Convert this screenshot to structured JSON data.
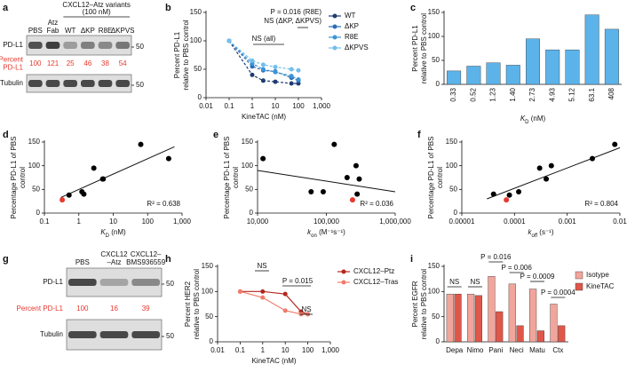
{
  "blots": [
    {
      "panel": "a",
      "header": [
        "CXCL12–Atz variants",
        "(100 nM)"
      ],
      "lanes": [
        [
          "PBS"
        ],
        [
          "Atz",
          "Fab"
        ],
        [
          "WT"
        ],
        [
          "ΔKP"
        ],
        [
          "R8E"
        ],
        [
          "ΔKPVS"
        ]
      ],
      "rows": [
        "PD-L1",
        "Tubulin"
      ],
      "percent_label": [
        "Percent",
        "PD-L1"
      ],
      "percent": [
        100,
        121,
        25,
        46,
        38,
        54
      ],
      "markers": [
        50,
        50
      ]
    },
    {
      "panel": "g",
      "lanes": [
        [
          "PBS"
        ],
        [
          "CXCL12",
          "–Atz"
        ],
        [
          "CXCL12–",
          "BMS936559"
        ]
      ],
      "rows": [
        "PD-L1",
        "Tubulin"
      ],
      "percent_label": [
        "Percent PD-L1"
      ],
      "percent": [
        100,
        16,
        39
      ],
      "markers": [
        50,
        50
      ]
    }
  ],
  "chart_data": [
    {
      "panel": "b",
      "type": "line",
      "xlabel": "KineTAC (nM)",
      "ylabel": [
        "Percent PD-L1",
        "relative to PBS control"
      ],
      "xlog": true,
      "xlim": [
        0.01,
        1000
      ],
      "xticks": [
        0.01,
        0.1,
        1,
        10,
        100,
        {
          "value": 1000,
          "label": "1,000"
        }
      ],
      "ylim": [
        0,
        150
      ],
      "yticks": [
        0,
        50,
        100,
        150
      ],
      "dashed": true,
      "x": [
        0.1,
        1,
        3,
        10,
        50,
        100
      ],
      "series": [
        {
          "name": "WT",
          "color": "#1f3b73",
          "values": [
            100,
            40,
            30,
            28,
            25,
            25
          ]
        },
        {
          "name": "ΔKP",
          "color": "#2a6db5",
          "values": [
            100,
            55,
            48,
            46,
            35,
            30
          ]
        },
        {
          "name": "R8E",
          "color": "#3c95d6",
          "values": [
            100,
            60,
            50,
            45,
            38,
            32
          ]
        },
        {
          "name": "ΔKPVS",
          "color": "#72bfeb",
          "values": [
            100,
            65,
            58,
            54,
            50,
            48
          ]
        }
      ],
      "annotations": [
        "P = 0.016 (R8E)",
        "NS (ΔKP, ΔKPVS)",
        "NS (all)"
      ]
    },
    {
      "panel": "c",
      "type": "bar",
      "xlabel": [
        "K",
        "D",
        " (nM)"
      ],
      "ylabel": [
        "Percent PD-L1",
        "relative to PBS control"
      ],
      "categories": [
        "0.33",
        "0.52",
        "1.23",
        "1.40",
        "2.73",
        "4.93",
        "5.12",
        "63.1",
        "408"
      ],
      "values": [
        28,
        38,
        45,
        40,
        95,
        72,
        72,
        145,
        115
      ],
      "color": "#5cb3ea",
      "ylim": [
        0,
        150
      ],
      "yticks": [
        0,
        50,
        100,
        150
      ]
    },
    {
      "panel": "d",
      "type": "scatter",
      "xlabel": [
        "K",
        "D",
        " (nM)"
      ],
      "ylabel": [
        "Percentage PD-L1 of PBS",
        "control"
      ],
      "xlog": true,
      "xlim": [
        0.1,
        1000
      ],
      "xticks": [
        0.1,
        1,
        10,
        100,
        {
          "value": 1000,
          "label": "1,000"
        }
      ],
      "ylim": [
        0,
        150
      ],
      "yticks": [
        0,
        50,
        100,
        150
      ],
      "x": [
        0.33,
        0.52,
        1.23,
        1.4,
        2.73,
        4.93,
        5.12,
        63.1,
        408
      ],
      "values": [
        28,
        38,
        45,
        40,
        95,
        72,
        72,
        145,
        115
      ],
      "point_colors": [
        "#e8392e",
        "#000000",
        "#000000",
        "#000000",
        "#000000",
        "#000000",
        "#000000",
        "#000000",
        "#000000"
      ],
      "fit": {
        "x": [
          0.3,
          600
        ],
        "y": [
          33,
          140
        ]
      },
      "annotation": "R² = 0.638"
    },
    {
      "panel": "e",
      "type": "scatter",
      "xlabel": [
        "k",
        "on",
        " (M⁻¹s⁻¹)"
      ],
      "ylabel": [
        "Percentage PD-L1 of PBS",
        "control"
      ],
      "xlog": true,
      "xlim": [
        10000,
        1000000
      ],
      "xticks": [
        {
          "value": 10000,
          "label": "10,000"
        },
        {
          "value": 100000,
          "label": "100,000"
        },
        {
          "value": 1000000,
          "label": "1,000,000"
        }
      ],
      "ylim": [
        0,
        150
      ],
      "yticks": [
        0,
        50,
        100,
        150
      ],
      "x": [
        12000,
        60000,
        90000,
        130000,
        200000,
        240000,
        270000,
        280000,
        300000
      ],
      "values": [
        115,
        45,
        45,
        145,
        75,
        28,
        100,
        40,
        72
      ],
      "point_colors": [
        "#000000",
        "#000000",
        "#000000",
        "#000000",
        "#000000",
        "#e8392e",
        "#000000",
        "#000000",
        "#000000"
      ],
      "fit": {
        "x": [
          10000,
          1000000
        ],
        "y": [
          90,
          45
        ]
      },
      "annotation": "R² = 0.036"
    },
    {
      "panel": "f",
      "type": "scatter",
      "xlabel": [
        "k",
        "off",
        " (s⁻¹)"
      ],
      "ylabel": [
        "Percentage PD-L1 of PBS",
        "control"
      ],
      "xlog": true,
      "xlim": [
        1e-05,
        0.01
      ],
      "xticks": [
        1e-05,
        0.0001,
        0.001,
        0.01
      ],
      "ylim": [
        0,
        150
      ],
      "yticks": [
        0,
        50,
        100,
        150
      ],
      "x": [
        4e-05,
        7e-05,
        8e-05,
        0.00012,
        0.0003,
        0.0004,
        0.0005,
        0.003,
        0.008
      ],
      "values": [
        40,
        28,
        38,
        45,
        95,
        72,
        100,
        115,
        145
      ],
      "point_colors": [
        "#000000",
        "#e8392e",
        "#000000",
        "#000000",
        "#000000",
        "#000000",
        "#000000",
        "#000000",
        "#000000"
      ],
      "fit": {
        "x": [
          3e-05,
          0.01
        ],
        "y": [
          30,
          138
        ]
      },
      "annotation": "R² = 0.804"
    },
    {
      "panel": "h",
      "type": "line",
      "xlabel": "KineTAC (nM)",
      "ylabel": [
        "Percent HER2",
        "relative to PBS control"
      ],
      "xlog": true,
      "xlim": [
        0.01,
        1000
      ],
      "xticks": [
        0.01,
        0.1,
        1,
        10,
        100,
        {
          "value": 1000,
          "label": "1,000"
        }
      ],
      "ylim": [
        0,
        150
      ],
      "yticks": [
        0,
        50,
        100,
        150
      ],
      "x": [
        0.1,
        1,
        10,
        50,
        100
      ],
      "series": [
        {
          "name": "CXCL12–Ptz",
          "color": "#b3261e",
          "values": [
            100,
            100,
            95,
            60,
            55
          ]
        },
        {
          "name": "CXCL12–Tras",
          "color": "#f07b6b",
          "values": [
            100,
            88,
            62,
            55,
            55
          ]
        }
      ],
      "annotations": [
        "NS",
        "P = 0.015",
        "NS"
      ]
    },
    {
      "panel": "i",
      "type": "bar",
      "ylabel": [
        "Percent EGFR",
        "relative to PBS control"
      ],
      "categories": [
        "Depa",
        "Nimo",
        "Pani",
        "Neci",
        "Matu",
        "Ctx"
      ],
      "ylim": [
        0,
        150
      ],
      "yticks": [
        0,
        50,
        100,
        150
      ],
      "series": [
        {
          "name": "Isotype",
          "color": "#f2a59b",
          "values": [
            95,
            95,
            130,
            115,
            105,
            75
          ]
        },
        {
          "name": "KineTAC",
          "color": "#e0574a",
          "values": [
            95,
            92,
            60,
            32,
            22,
            32
          ]
        }
      ],
      "annotations": [
        "NS",
        "NS",
        "P = 0.016",
        "P = 0.006",
        "P = 0.0009",
        "P = 0.0004"
      ]
    }
  ]
}
